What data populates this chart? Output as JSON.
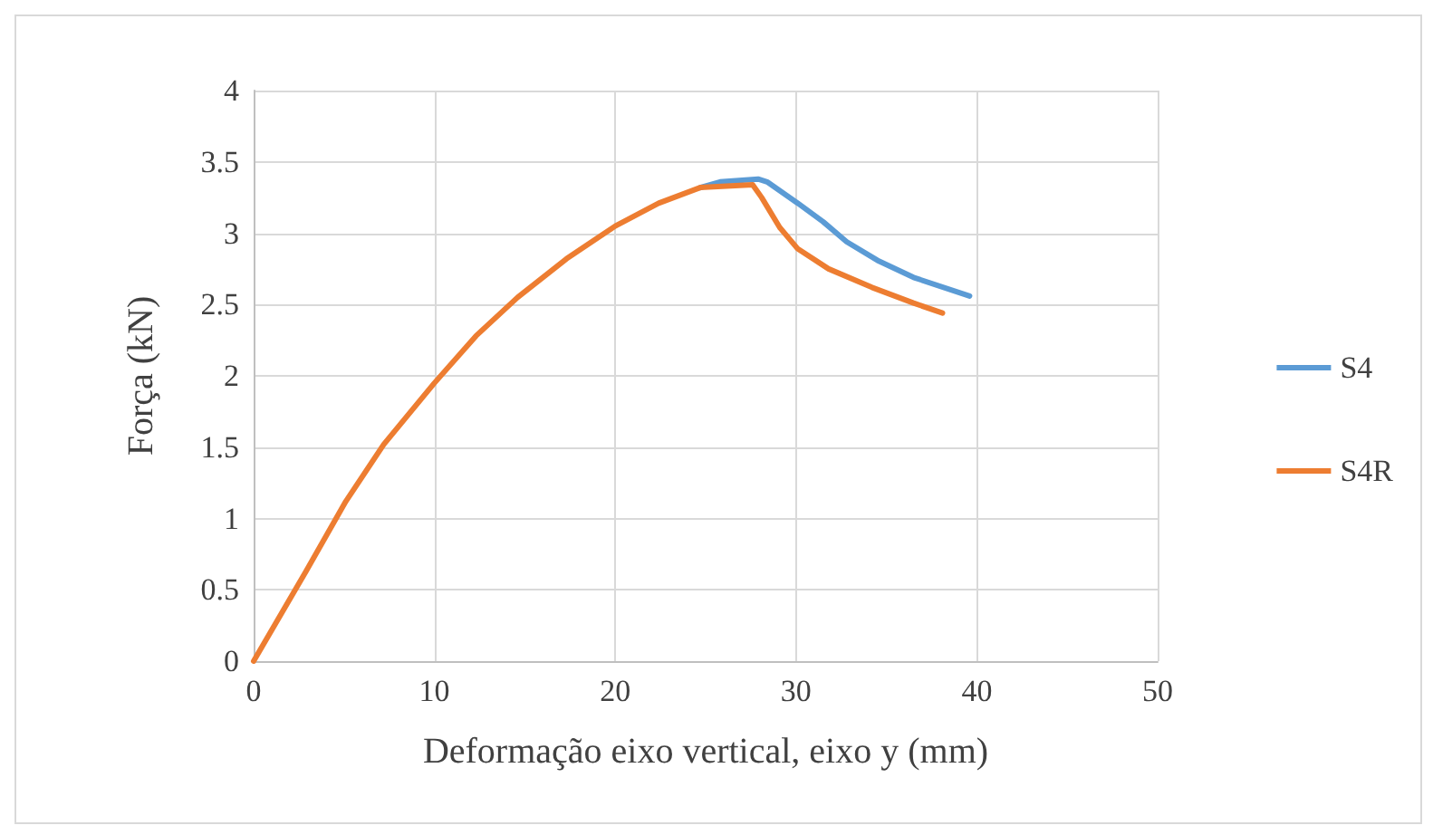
{
  "chart_data": {
    "type": "line",
    "xlabel": "Deformação eixo vertical, eixo y (mm)",
    "ylabel": "Força (kN)",
    "xlim": [
      0,
      50
    ],
    "xticks": [
      0,
      10,
      20,
      30,
      40,
      50
    ],
    "ylim": [
      0,
      4
    ],
    "yticks": [
      0,
      0.5,
      1,
      1.5,
      2,
      2.5,
      3,
      3.5,
      4
    ],
    "grid": true,
    "legend": "right",
    "marker": "none",
    "line_style": "solid",
    "series": [
      {
        "name": "S4",
        "color": "#5b9bd5",
        "x": [
          24.7,
          25.8,
          27.9,
          28.4,
          30.1,
          31.5,
          32.8,
          34.5,
          36.5,
          39.6
        ],
        "values": [
          3.32,
          3.36,
          3.38,
          3.36,
          3.21,
          3.08,
          2.94,
          2.81,
          2.69,
          2.56
        ]
      },
      {
        "name": "S4R",
        "color": "#ed7d31",
        "x": [
          0,
          2.9,
          5.1,
          7.2,
          10,
          12.3,
          14.6,
          17.3,
          20,
          22.4,
          24.7,
          27.6,
          28.1,
          29.1,
          30.1,
          31.8,
          34.2,
          36.5,
          38.1
        ],
        "values": [
          0,
          0.63,
          1.12,
          1.52,
          1.95,
          2.28,
          2.55,
          2.82,
          3.05,
          3.21,
          3.32,
          3.34,
          3.25,
          3.04,
          2.89,
          2.75,
          2.62,
          2.51,
          2.44
        ]
      }
    ]
  }
}
